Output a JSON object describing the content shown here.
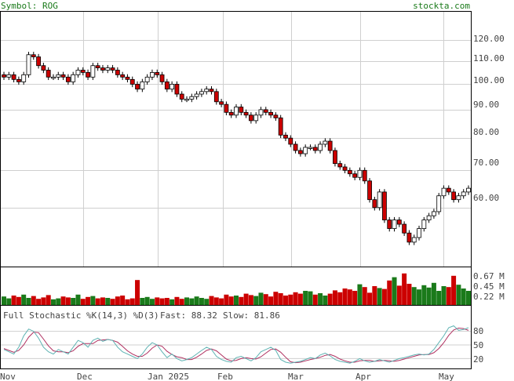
{
  "header": {
    "symbol_label": "Symbol: ROG",
    "site": "stockta.com"
  },
  "colors": {
    "up_candle": "#ffffff",
    "down_candle": "#cc0000",
    "up_volume": "#1a7a1a",
    "down_volume": "#cc0000",
    "fast_line": "#5fb3b3",
    "slow_line": "#b03060",
    "axis_text": "#444444",
    "grid": "#cfcfcf",
    "header_text": "#1a7a1a"
  },
  "chart_data": [
    {
      "type": "candlestick",
      "symbol": "ROG",
      "x_tick_labels": [
        "Nov",
        "Dec",
        "Jan 2025",
        "Feb",
        "Mar",
        "Apr",
        "May"
      ],
      "y_tick_labels": [
        "120.00",
        "110.00",
        "100.00",
        "90.00",
        "80.00",
        "70.00",
        "60.00"
      ],
      "y_ticks": [
        120,
        110,
        100,
        90,
        80,
        70,
        60
      ],
      "scale": "log",
      "ylim": [
        47,
        135
      ],
      "grid": true,
      "closes": [
        103,
        104,
        102,
        101,
        104,
        113,
        112,
        108,
        106,
        103,
        103,
        104,
        103,
        101,
        104,
        106,
        105,
        103,
        108,
        107,
        106,
        107,
        106,
        104,
        103,
        102,
        100,
        98,
        101,
        103,
        105,
        104,
        101,
        98,
        100,
        96,
        94,
        94,
        95,
        96,
        97,
        98,
        97,
        93,
        92,
        89,
        88,
        91,
        89,
        88,
        86,
        88,
        90,
        89,
        88,
        87,
        81,
        80,
        78,
        76,
        75,
        77,
        77,
        76,
        78,
        79,
        76,
        72,
        71,
        70,
        69,
        68,
        70,
        67,
        62,
        60,
        64,
        57,
        55,
        57,
        56,
        54,
        52,
        53,
        55,
        57,
        58,
        59,
        63,
        65,
        64,
        62,
        63,
        64,
        65
      ]
    },
    {
      "type": "bar",
      "name": "Volume",
      "y_tick_labels": [
        "0.67 M",
        "0.45 M",
        "0.22 M"
      ],
      "y_ticks": [
        0.67,
        0.45,
        0.22
      ],
      "ylim": [
        0,
        0.8
      ],
      "values": [
        0.18,
        0.14,
        0.2,
        0.17,
        0.22,
        0.15,
        0.19,
        0.13,
        0.16,
        0.21,
        0.12,
        0.14,
        0.18,
        0.16,
        0.15,
        0.22,
        0.13,
        0.17,
        0.19,
        0.14,
        0.16,
        0.15,
        0.13,
        0.18,
        0.2,
        0.12,
        0.14,
        0.53,
        0.15,
        0.17,
        0.13,
        0.16,
        0.14,
        0.15,
        0.12,
        0.17,
        0.13,
        0.16,
        0.14,
        0.18,
        0.15,
        0.13,
        0.19,
        0.16,
        0.14,
        0.22,
        0.18,
        0.2,
        0.17,
        0.24,
        0.21,
        0.19,
        0.26,
        0.23,
        0.18,
        0.28,
        0.25,
        0.2,
        0.22,
        0.27,
        0.24,
        0.3,
        0.29,
        0.22,
        0.25,
        0.2,
        0.24,
        0.31,
        0.27,
        0.35,
        0.33,
        0.3,
        0.44,
        0.38,
        0.26,
        0.4,
        0.36,
        0.34,
        0.52,
        0.59,
        0.41,
        0.67,
        0.45,
        0.38,
        0.33,
        0.42,
        0.37,
        0.47,
        0.3,
        0.4,
        0.38,
        0.62,
        0.43,
        0.35,
        0.3
      ]
    },
    {
      "type": "line",
      "title": "Full Stochastic %K(14,3) %D(3)",
      "fast_label": "Fast: 88.32",
      "slow_label": "Slow: 81.86",
      "y_tick_labels": [
        "80",
        "50",
        "20"
      ],
      "y_ticks": [
        80,
        50,
        20
      ],
      "ylim": [
        0,
        100
      ],
      "series": [
        {
          "name": "Fast",
          "values": [
            40,
            35,
            30,
            45,
            70,
            85,
            80,
            65,
            45,
            35,
            30,
            40,
            35,
            30,
            45,
            60,
            55,
            45,
            60,
            65,
            58,
            62,
            60,
            45,
            35,
            30,
            25,
            20,
            30,
            45,
            55,
            50,
            35,
            22,
            30,
            20,
            15,
            18,
            22,
            30,
            38,
            45,
            40,
            25,
            18,
            14,
            12,
            22,
            25,
            20,
            15,
            22,
            35,
            40,
            45,
            38,
            18,
            12,
            10,
            12,
            14,
            18,
            22,
            20,
            28,
            32,
            26,
            18,
            14,
            12,
            10,
            14,
            20,
            15,
            12,
            14,
            18,
            15,
            12,
            16,
            20,
            22,
            25,
            28,
            30,
            28,
            30,
            40,
            55,
            70,
            88,
            92,
            82,
            84,
            88
          ]
        },
        {
          "name": "Slow",
          "values": [
            42,
            38,
            34,
            38,
            50,
            67,
            78,
            77,
            63,
            48,
            37,
            35,
            35,
            33,
            37,
            47,
            53,
            53,
            53,
            60,
            61,
            62,
            60,
            56,
            47,
            37,
            30,
            25,
            25,
            32,
            43,
            50,
            47,
            36,
            29,
            24,
            22,
            18,
            18,
            23,
            30,
            38,
            41,
            37,
            28,
            19,
            15,
            16,
            20,
            22,
            20,
            19,
            24,
            32,
            40,
            41,
            34,
            23,
            13,
            11,
            12,
            15,
            18,
            20,
            23,
            27,
            29,
            25,
            19,
            15,
            12,
            12,
            15,
            16,
            16,
            14,
            15,
            16,
            15,
            14,
            16,
            19,
            22,
            25,
            28,
            29,
            29,
            33,
            42,
            55,
            71,
            83,
            87,
            86,
            82
          ]
        }
      ]
    }
  ]
}
